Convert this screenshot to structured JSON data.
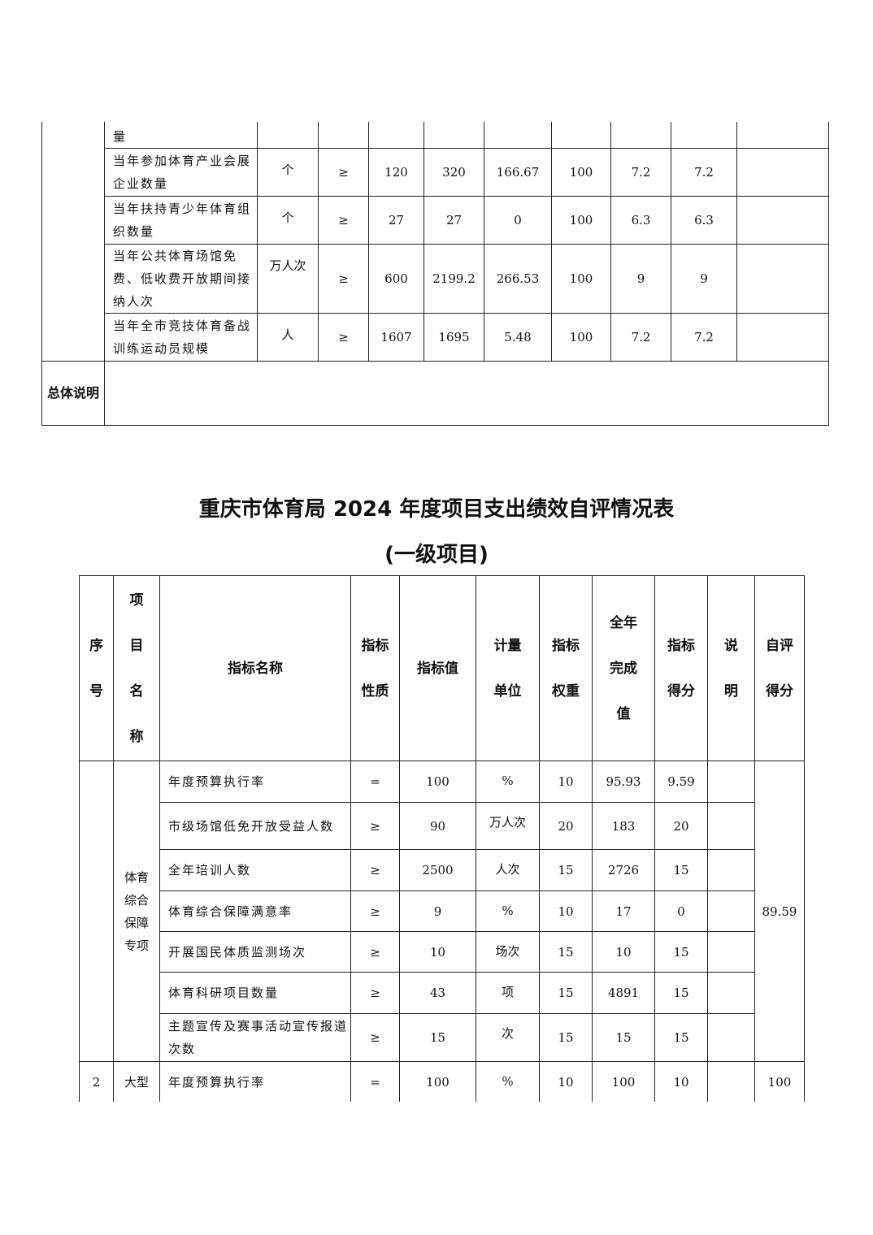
{
  "table1": {
    "continuation_name": "量",
    "rows": [
      {
        "name": "当年参加体育产业会展企业数量",
        "unit": "个",
        "op": "≥",
        "target": "120",
        "actual": "320",
        "rate": "166.67",
        "c7": "100",
        "weight": "7.2",
        "score": "7.2",
        "note": ""
      },
      {
        "name": "当年扶持青少年体育组织数量",
        "unit": "个",
        "op": "≥",
        "target": "27",
        "actual": "27",
        "rate": "0",
        "c7": "100",
        "weight": "6.3",
        "score": "6.3",
        "note": ""
      },
      {
        "name": "当年公共体育场馆免费、低收费开放期间接纳人次",
        "unit": "万人次",
        "op": "≥",
        "target": "600",
        "actual": "2199.2",
        "rate": "266.53",
        "c7": "100",
        "weight": "9",
        "score": "9",
        "note": ""
      },
      {
        "name": "当年全市竞技体育备战训练运动员规模",
        "unit": "人",
        "op": "≥",
        "target": "1607",
        "actual": "1695",
        "rate": "5.48",
        "c7": "100",
        "weight": "7.2",
        "score": "7.2",
        "note": ""
      }
    ],
    "summary_label": "总体说明",
    "summary_text": ""
  },
  "title": {
    "line1": "重庆市体育局 2024 年度项目支出绩效自评情况表",
    "line2": "(一级项目)"
  },
  "table2": {
    "headers": [
      "序号",
      "项目名称",
      "指标名称",
      "指标性质",
      "指标值",
      "计量单位",
      "指标权重",
      "全年完成值",
      "指标得分",
      "说明",
      "自评得分"
    ],
    "groups": [
      {
        "no": "",
        "project": "体育综合保障专项",
        "self_score": "89.59",
        "rows": [
          {
            "name": "年度预算执行率",
            "op": "=",
            "value": "100",
            "unit": "%",
            "weight": "10",
            "actual": "95.93",
            "score": "9.59",
            "note": ""
          },
          {
            "name": "市级场馆低免开放受益人数",
            "op": "≥",
            "value": "90",
            "unit": "万人次",
            "weight": "20",
            "actual": "183",
            "score": "20",
            "note": ""
          },
          {
            "name": "全年培训人数",
            "op": "≥",
            "value": "2500",
            "unit": "人次",
            "weight": "15",
            "actual": "2726",
            "score": "15",
            "note": ""
          },
          {
            "name": "体育综合保障满意率",
            "op": "≥",
            "value": "9",
            "unit": "%",
            "weight": "10",
            "actual": "17",
            "score": "0",
            "note": ""
          },
          {
            "name": "开展国民体质监测场次",
            "op": "≥",
            "value": "10",
            "unit": "场次",
            "weight": "15",
            "actual": "10",
            "score": "15",
            "note": ""
          },
          {
            "name": "体育科研项目数量",
            "op": "≥",
            "value": "43",
            "unit": "项",
            "weight": "15",
            "actual": "4891",
            "score": "15",
            "note": ""
          },
          {
            "name": "主题宣传及赛事活动宣传报道次数",
            "op": "≥",
            "value": "15",
            "unit": "次",
            "weight": "15",
            "actual": "15",
            "score": "15",
            "note": ""
          }
        ]
      },
      {
        "no": "2",
        "project": "大型",
        "self_score": "100",
        "rows": [
          {
            "name": "年度预算执行率",
            "op": "=",
            "value": "100",
            "unit": "%",
            "weight": "10",
            "actual": "100",
            "score": "10",
            "note": ""
          }
        ]
      }
    ]
  }
}
